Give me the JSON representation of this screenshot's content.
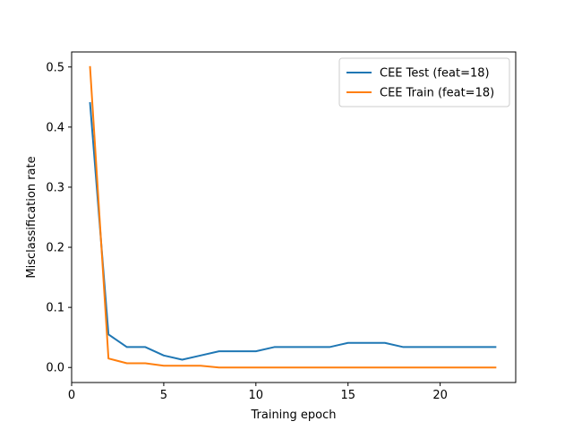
{
  "chart_data": {
    "type": "line",
    "title": "",
    "xlabel": "Training epoch",
    "ylabel": "Misclassification rate",
    "xlim": [
      0,
      24.1
    ],
    "ylim": [
      -0.025,
      0.525
    ],
    "xticks": [
      0,
      5,
      10,
      15,
      20
    ],
    "yticks": [
      0.0,
      0.1,
      0.2,
      0.3,
      0.4,
      0.5
    ],
    "xtick_labels": [
      "0",
      "5",
      "10",
      "15",
      "20"
    ],
    "ytick_labels": [
      "0.0",
      "0.1",
      "0.2",
      "0.3",
      "0.4",
      "0.5"
    ],
    "grid": false,
    "legend_position": "top-right",
    "x": [
      1,
      2,
      3,
      4,
      5,
      6,
      7,
      8,
      9,
      10,
      11,
      12,
      13,
      14,
      15,
      16,
      17,
      18,
      19,
      20,
      21,
      22,
      23
    ],
    "series": [
      {
        "name": "CEE Test (feat=18)",
        "color": "#1f77b4",
        "values": [
          0.44,
          0.055,
          0.034,
          0.034,
          0.02,
          0.013,
          0.02,
          0.027,
          0.027,
          0.027,
          0.034,
          0.034,
          0.034,
          0.034,
          0.041,
          0.041,
          0.041,
          0.034,
          0.034,
          0.034,
          0.034,
          0.034,
          0.034
        ]
      },
      {
        "name": "CEE Train (feat=18)",
        "color": "#ff7f0e",
        "values": [
          0.5,
          0.015,
          0.007,
          0.007,
          0.003,
          0.003,
          0.003,
          0.0,
          0.0,
          0.0,
          0.0,
          0.0,
          0.0,
          0.0,
          0.0,
          0.0,
          0.0,
          0.0,
          0.0,
          0.0,
          0.0,
          0.0,
          0.0
        ]
      }
    ]
  }
}
